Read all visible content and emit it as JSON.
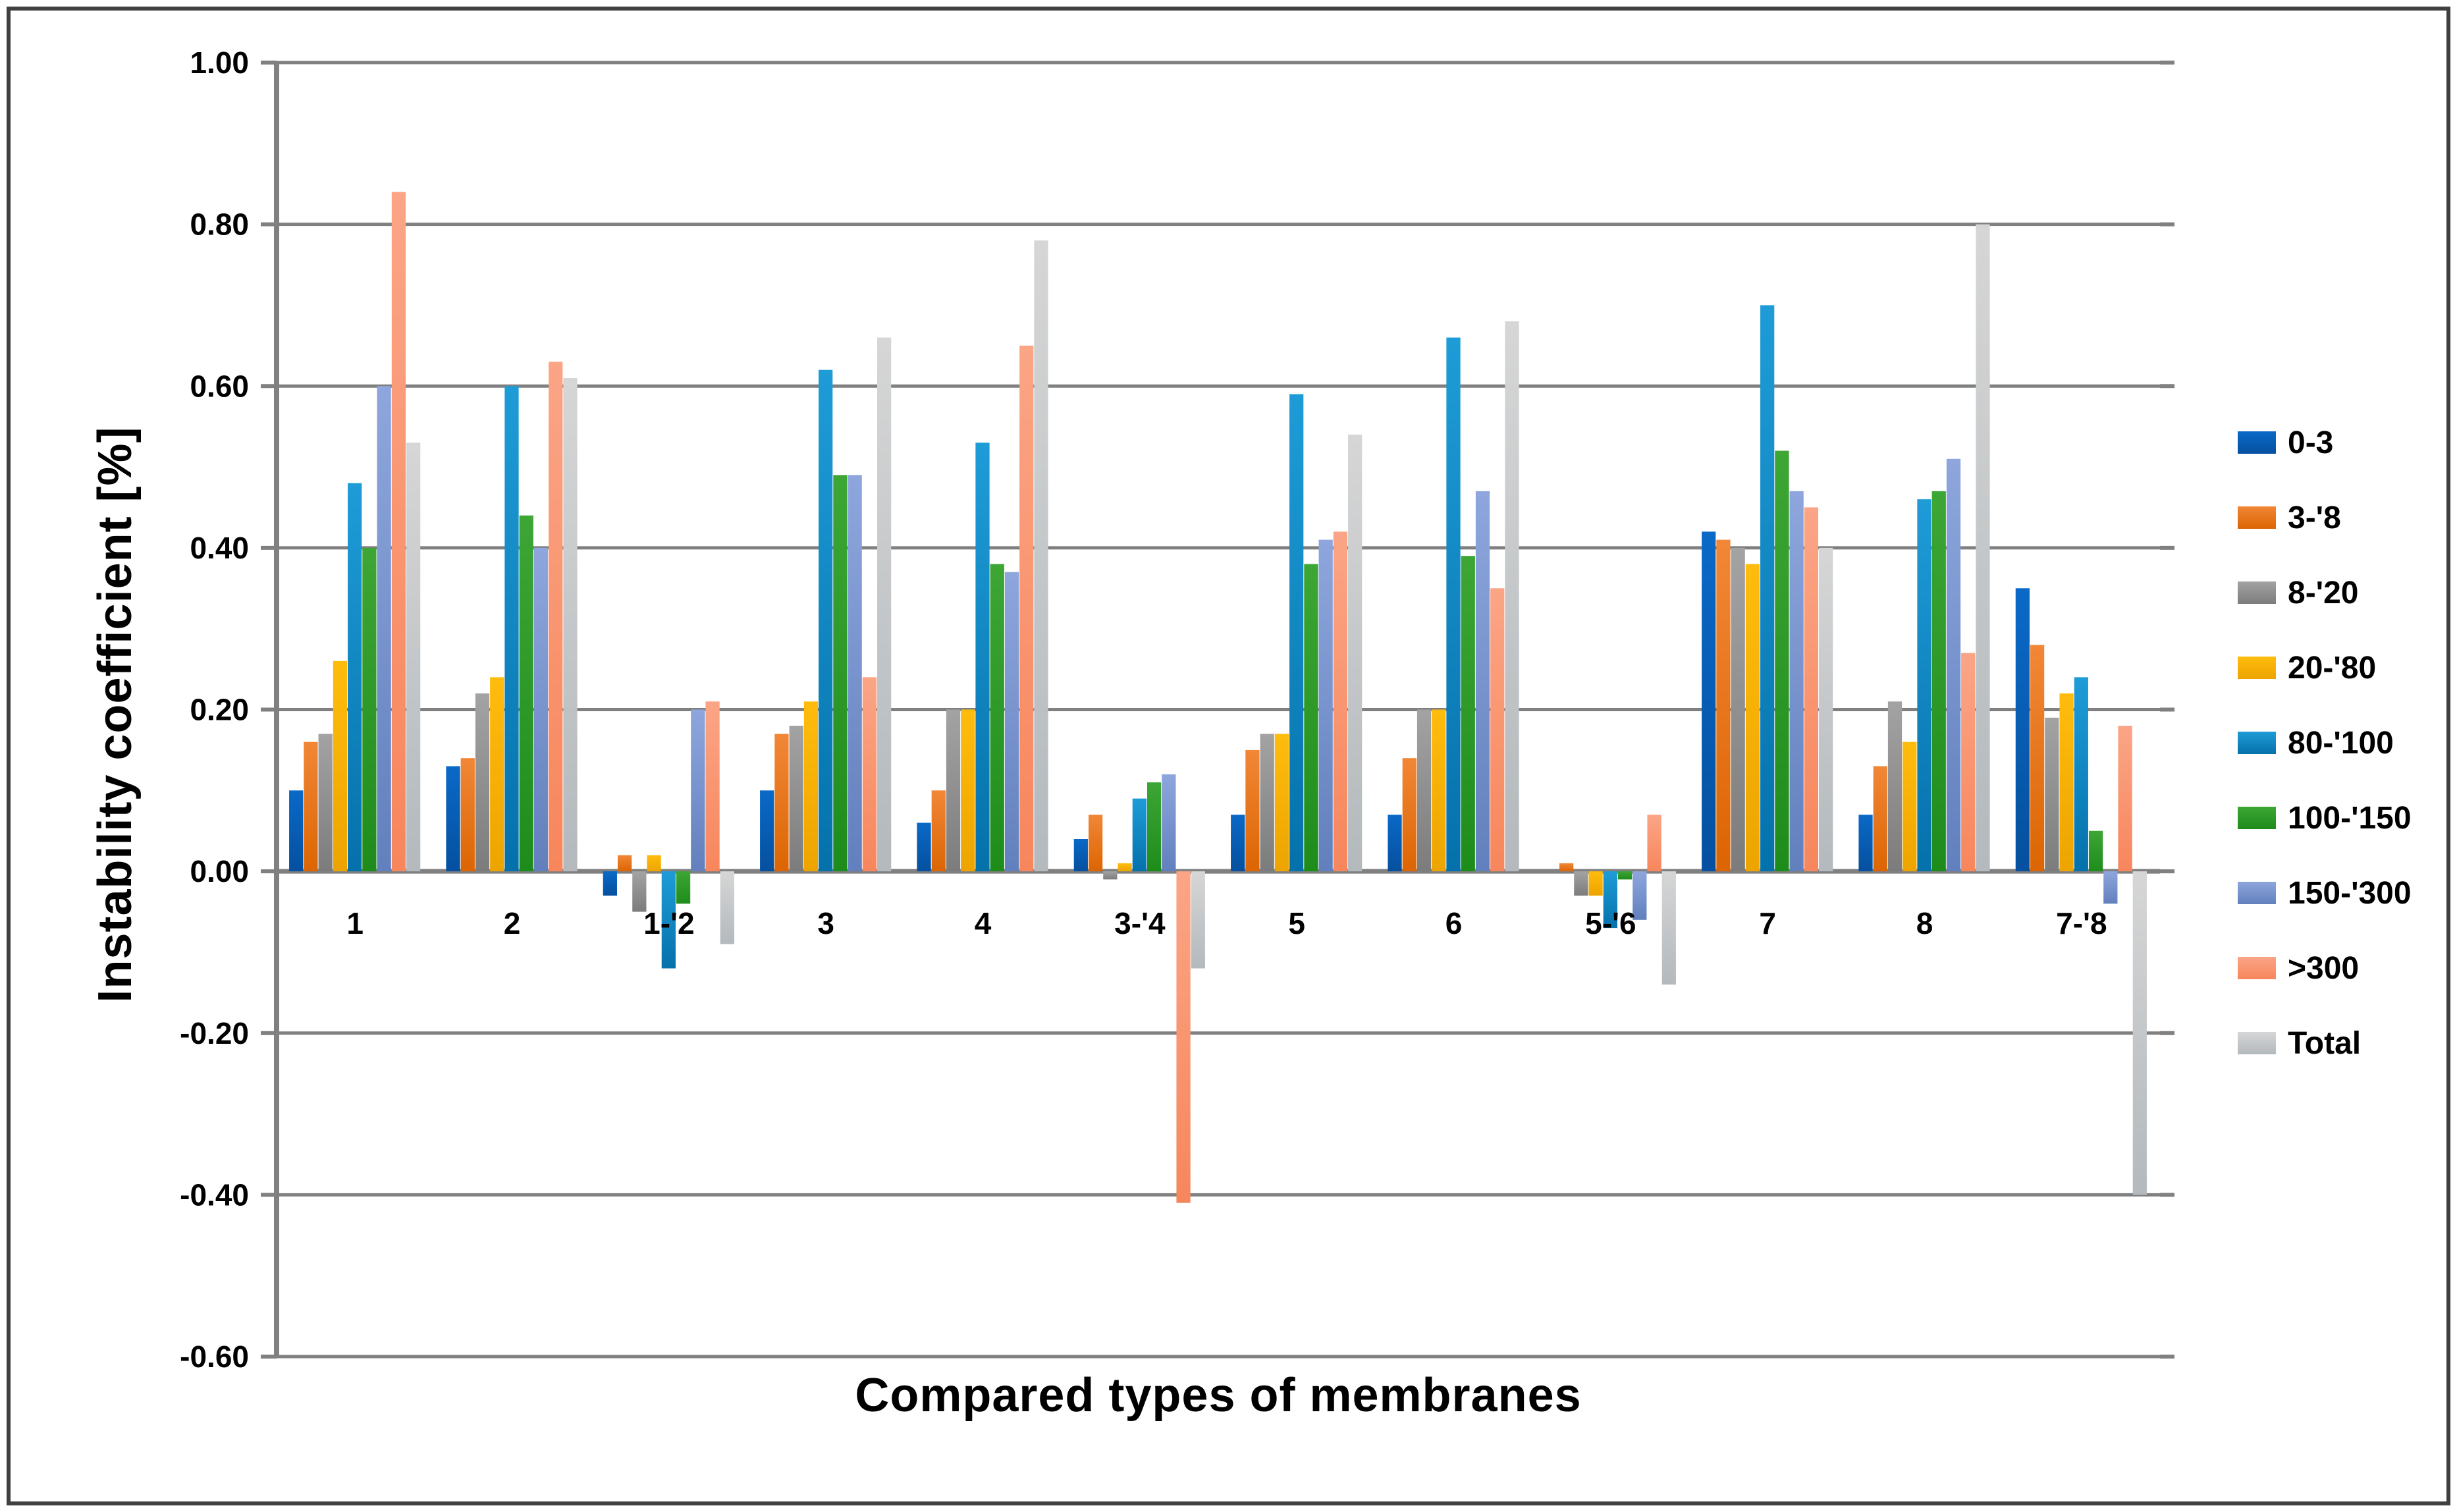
{
  "frame": {
    "border_color": "#3f3f3f",
    "background": "#ffffff"
  },
  "y_axis": {
    "title": "Instability  coefficient [%]",
    "tick_labels": [
      "1.00",
      "0.80",
      "0.60",
      "0.40",
      "0.20",
      "0.00",
      "-0.20",
      "-0.40",
      "-0.60"
    ]
  },
  "x_axis": {
    "title": "Compared types of membranes"
  },
  "chart_data": {
    "type": "bar",
    "title": "",
    "xlabel": "Compared types of membranes",
    "ylabel": "Instability  coefficient [%]",
    "ylim": [
      -0.6,
      1.0
    ],
    "ytick_step": 0.2,
    "grid": true,
    "legend_position": "right",
    "axis_color": "#808080",
    "grid_color": "#808080",
    "categories": [
      "1",
      "2",
      "1-'2",
      "3",
      "4",
      "3-'4",
      "5",
      "6",
      "5-'6",
      "7",
      "8",
      "7-'8"
    ],
    "series": [
      {
        "name": "0-3",
        "color_top": "#0a69c7",
        "color_bottom": "#05509f",
        "values": [
          0.1,
          0.13,
          -0.03,
          0.1,
          0.06,
          0.04,
          0.07,
          0.07,
          0.0,
          0.42,
          0.07,
          0.35
        ]
      },
      {
        "name": "3-'8",
        "color_top": "#f18737",
        "color_bottom": "#dc6502",
        "values": [
          0.16,
          0.14,
          0.02,
          0.17,
          0.1,
          0.07,
          0.15,
          0.14,
          0.01,
          0.41,
          0.13,
          0.28
        ]
      },
      {
        "name": "8-'20",
        "color_top": "#a3a3a3",
        "color_bottom": "#7c7c7c",
        "values": [
          0.17,
          0.22,
          -0.05,
          0.18,
          0.2,
          -0.01,
          0.17,
          0.2,
          -0.03,
          0.4,
          0.21,
          0.19
        ]
      },
      {
        "name": "20-'80",
        "color_top": "#ffbc0d",
        "color_bottom": "#eda400",
        "values": [
          0.26,
          0.24,
          0.02,
          0.21,
          0.2,
          0.01,
          0.17,
          0.2,
          -0.03,
          0.38,
          0.16,
          0.22
        ]
      },
      {
        "name": "80-'100",
        "color_top": "#1e9cd7",
        "color_bottom": "#0571ab",
        "values": [
          0.48,
          0.6,
          -0.12,
          0.62,
          0.53,
          0.09,
          0.59,
          0.66,
          -0.07,
          0.7,
          0.46,
          0.24
        ]
      },
      {
        "name": "100-'150",
        "color_top": "#3da635",
        "color_bottom": "#1e8c1b",
        "values": [
          0.4,
          0.44,
          -0.04,
          0.49,
          0.38,
          0.11,
          0.38,
          0.39,
          -0.01,
          0.52,
          0.47,
          0.05
        ]
      },
      {
        "name": "150-'300",
        "color_top": "#8ea6dd",
        "color_bottom": "#6280bd",
        "values": [
          0.6,
          0.4,
          0.2,
          0.49,
          0.37,
          0.12,
          0.41,
          0.47,
          -0.06,
          0.47,
          0.51,
          -0.04
        ]
      },
      {
        "name": ">300",
        "color_top": "#fba586",
        "color_bottom": "#f7865c",
        "values": [
          0.84,
          0.63,
          0.21,
          0.24,
          0.65,
          -0.41,
          0.42,
          0.35,
          0.07,
          0.45,
          0.27,
          0.18
        ]
      },
      {
        "name": "Total",
        "color_top": "#d6d6d6",
        "color_bottom": "#b3b9bd",
        "values": [
          0.53,
          0.61,
          -0.09,
          0.66,
          0.78,
          -0.12,
          0.54,
          0.68,
          -0.14,
          0.4,
          0.8,
          -0.4
        ]
      }
    ]
  }
}
